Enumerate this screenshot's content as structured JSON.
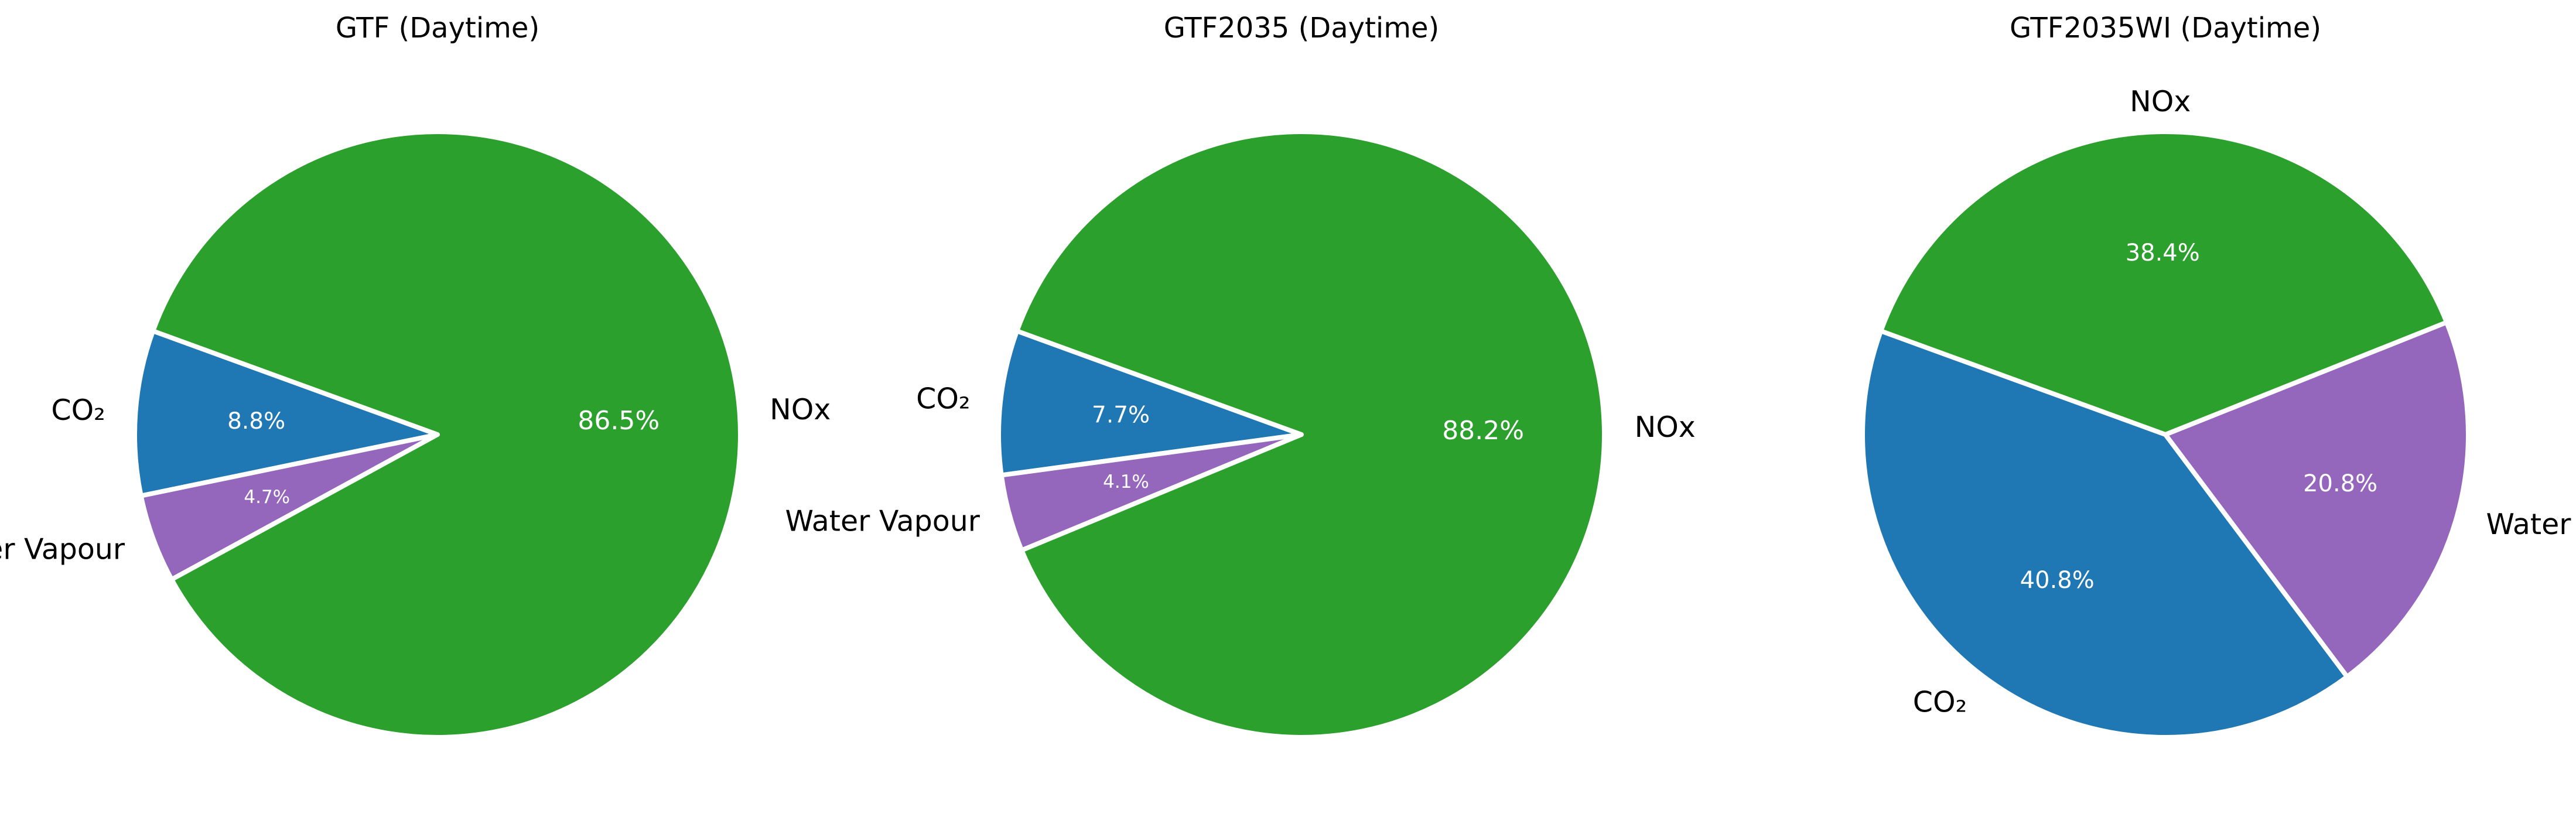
{
  "chart_data": [
    {
      "type": "pie",
      "title": "GTF (Daytime)",
      "slices": [
        {
          "label": "CO₂",
          "value": 8.8,
          "pct_label": "8.8%",
          "color": "#1f77b4"
        },
        {
          "label": "Water Vapour",
          "value": 4.7,
          "pct_label": "4.7%",
          "color": "#9467bd"
        },
        {
          "label": "NOx",
          "value": 86.5,
          "pct_label": "86.5%",
          "color": "#2ca02c"
        }
      ]
    },
    {
      "type": "pie",
      "title": "GTF2035 (Daytime)",
      "slices": [
        {
          "label": "CO₂",
          "value": 7.7,
          "pct_label": "7.7%",
          "color": "#1f77b4"
        },
        {
          "label": "Water Vapour",
          "value": 4.1,
          "pct_label": "4.1%",
          "color": "#9467bd"
        },
        {
          "label": "NOx",
          "value": 88.2,
          "pct_label": "88.2%",
          "color": "#2ca02c"
        }
      ]
    },
    {
      "type": "pie",
      "title": "GTF2035WI (Daytime)",
      "slices": [
        {
          "label": "CO₂",
          "value": 40.8,
          "pct_label": "40.8%",
          "color": "#1f77b4"
        },
        {
          "label": "Water Vapour",
          "value": 20.8,
          "pct_label": "20.8%",
          "color": "#9467bd"
        },
        {
          "label": "NOx",
          "value": 38.4,
          "pct_label": "38.4%",
          "color": "#2ca02c"
        }
      ]
    }
  ]
}
